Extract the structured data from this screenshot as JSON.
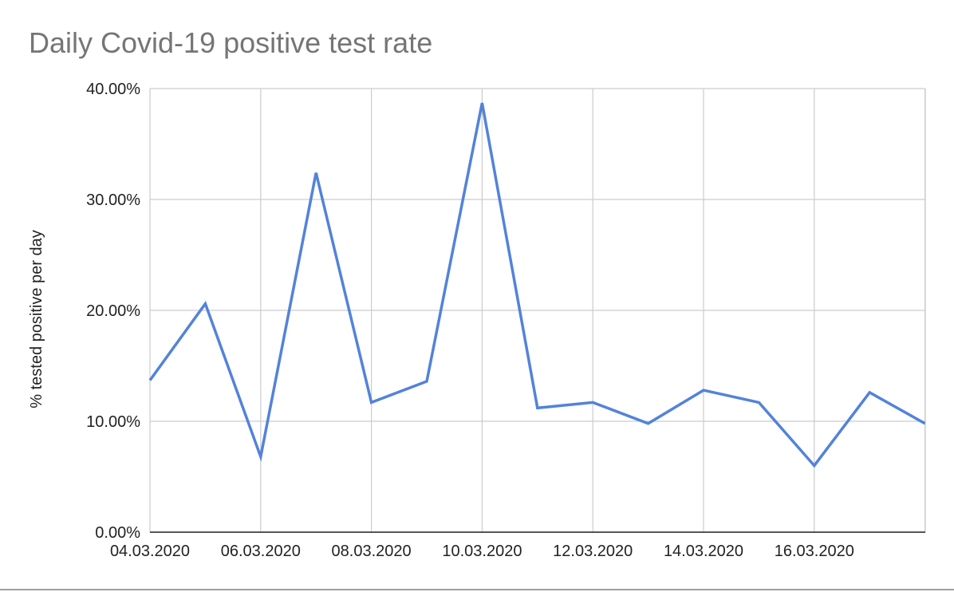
{
  "chart_data": {
    "type": "line",
    "title": "Daily Covid-19 positive test rate",
    "xlabel": "",
    "ylabel": "% tested positive per day",
    "x": [
      "04.03.2020",
      "05.03.2020",
      "06.03.2020",
      "07.03.2020",
      "08.03.2020",
      "09.03.2020",
      "10.03.2020",
      "11.03.2020",
      "12.03.2020",
      "13.03.2020",
      "14.03.2020",
      "15.03.2020",
      "16.03.2020",
      "17.03.2020",
      "18.03.2020"
    ],
    "x_tick_labels": [
      "04.03.2020",
      "06.03.2020",
      "08.03.2020",
      "10.03.2020",
      "12.03.2020",
      "14.03.2020",
      "16.03.2020"
    ],
    "y_tick_labels": [
      "0.00%",
      "10.00%",
      "20.00%",
      "30.00%",
      "40.00%"
    ],
    "y_ticks": [
      0,
      10,
      20,
      30,
      40
    ],
    "ylim": [
      0,
      40
    ],
    "grid": true,
    "legend": "none",
    "series": [
      {
        "values": [
          13.7,
          20.6,
          6.8,
          32.4,
          11.7,
          13.6,
          38.7,
          11.2,
          11.7,
          9.8,
          12.8,
          11.7,
          6.0,
          12.6,
          9.8
        ],
        "color": "#5383d9"
      }
    ]
  },
  "colors": {
    "title": "#757575",
    "grid": "#cccccc",
    "axis": "#222222",
    "line": "#5383d9",
    "bottom_rule": "#9e9e9e"
  }
}
